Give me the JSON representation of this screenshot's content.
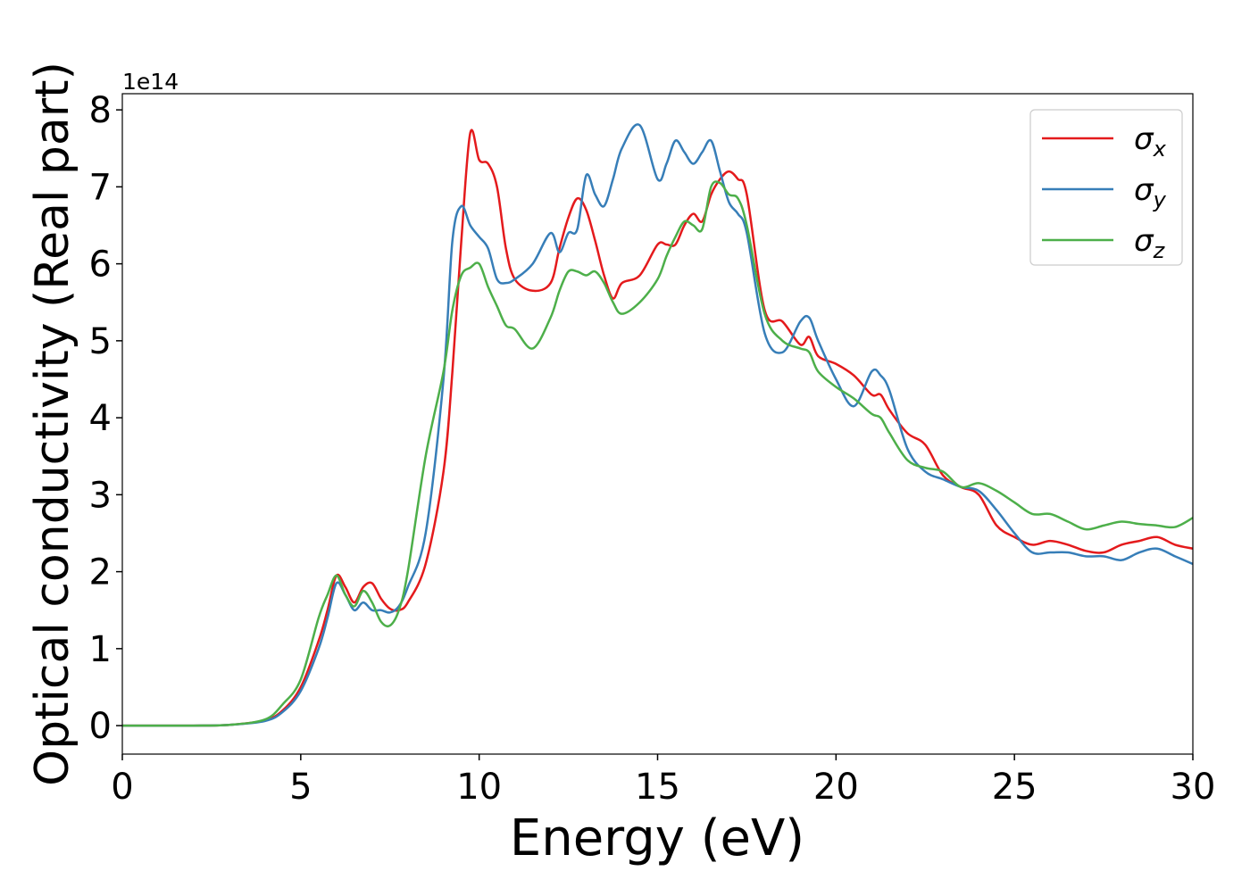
{
  "chart_data": {
    "type": "line",
    "xlabel": "Energy (eV)",
    "ylabel": "Optical conductivity (Real part)",
    "y_offset_label": "1e14",
    "x": [
      0,
      1,
      2,
      3,
      4,
      4.5,
      5,
      5.5,
      5.75,
      6,
      6.25,
      6.5,
      6.75,
      7,
      7.25,
      7.5,
      7.75,
      8,
      8.5,
      9,
      9.25,
      9.5,
      9.75,
      10,
      10.25,
      10.5,
      10.75,
      11,
      11.5,
      12,
      12.25,
      12.5,
      12.75,
      13,
      13.25,
      13.5,
      13.75,
      14,
      14.5,
      15,
      15.25,
      15.5,
      15.75,
      16,
      16.25,
      16.5,
      16.75,
      17,
      17.25,
      17.5,
      18,
      18.5,
      19,
      19.25,
      19.5,
      20,
      20.5,
      21,
      21.25,
      21.5,
      22,
      22.5,
      23,
      23.5,
      24,
      24.5,
      25,
      25.5,
      26,
      26.5,
      27,
      27.5,
      28,
      28.5,
      29,
      29.5,
      30
    ],
    "series": [
      {
        "name": "σx",
        "color": "#e41a1c",
        "values": [
          0,
          0,
          0,
          0.01,
          0.07,
          0.2,
          0.5,
          1.1,
          1.5,
          1.95,
          1.8,
          1.6,
          1.8,
          1.85,
          1.65,
          1.52,
          1.5,
          1.6,
          2.1,
          3.3,
          4.6,
          6.3,
          7.7,
          7.35,
          7.3,
          7.0,
          6.2,
          5.8,
          5.65,
          5.75,
          6.2,
          6.6,
          6.85,
          6.7,
          6.3,
          5.85,
          5.55,
          5.75,
          5.85,
          6.25,
          6.25,
          6.25,
          6.5,
          6.65,
          6.55,
          6.9,
          7.1,
          7.2,
          7.1,
          6.9,
          5.4,
          5.25,
          4.95,
          5.05,
          4.8,
          4.7,
          4.55,
          4.3,
          4.3,
          4.1,
          3.8,
          3.65,
          3.25,
          3.1,
          3.0,
          2.6,
          2.45,
          2.35,
          2.4,
          2.35,
          2.27,
          2.25,
          2.35,
          2.4,
          2.45,
          2.35,
          2.3
        ]
      },
      {
        "name": "σy",
        "color": "#377eb8",
        "values": [
          0,
          0,
          0,
          0.01,
          0.06,
          0.18,
          0.45,
          1.0,
          1.4,
          1.85,
          1.7,
          1.5,
          1.6,
          1.5,
          1.5,
          1.47,
          1.55,
          1.8,
          2.5,
          4.5,
          6.3,
          6.75,
          6.5,
          6.35,
          6.2,
          5.8,
          5.75,
          5.8,
          6.0,
          6.4,
          6.15,
          6.4,
          6.45,
          7.15,
          6.9,
          6.75,
          7.1,
          7.5,
          7.8,
          7.1,
          7.3,
          7.6,
          7.45,
          7.3,
          7.45,
          7.6,
          7.2,
          6.8,
          6.65,
          6.4,
          5.1,
          4.85,
          5.25,
          5.3,
          5.0,
          4.5,
          4.15,
          4.6,
          4.55,
          4.35,
          3.6,
          3.3,
          3.2,
          3.1,
          3.05,
          2.8,
          2.5,
          2.25,
          2.25,
          2.25,
          2.2,
          2.2,
          2.15,
          2.25,
          2.3,
          2.2,
          2.1
        ]
      },
      {
        "name": "σz",
        "color": "#4daf4a",
        "values": [
          0,
          0,
          0,
          0.01,
          0.08,
          0.28,
          0.6,
          1.4,
          1.7,
          1.95,
          1.7,
          1.55,
          1.75,
          1.6,
          1.35,
          1.3,
          1.5,
          2.0,
          3.5,
          4.6,
          5.4,
          5.85,
          5.95,
          6.0,
          5.7,
          5.45,
          5.2,
          5.15,
          4.9,
          5.3,
          5.65,
          5.9,
          5.9,
          5.85,
          5.9,
          5.75,
          5.5,
          5.35,
          5.5,
          5.8,
          6.1,
          6.35,
          6.55,
          6.5,
          6.45,
          7.0,
          7.05,
          6.9,
          6.85,
          6.5,
          5.35,
          5.0,
          4.9,
          4.85,
          4.6,
          4.4,
          4.25,
          4.05,
          4.0,
          3.8,
          3.45,
          3.35,
          3.3,
          3.1,
          3.15,
          3.05,
          2.9,
          2.75,
          2.75,
          2.65,
          2.55,
          2.6,
          2.65,
          2.62,
          2.6,
          2.58,
          2.7
        ]
      }
    ],
    "xlim": [
      0,
      30
    ],
    "ylim": [
      -0.37,
      8.21
    ],
    "xticks": [
      0,
      5,
      10,
      15,
      20,
      25,
      30
    ],
    "yticks": [
      0,
      1,
      2,
      3,
      4,
      5,
      6,
      7,
      8
    ],
    "legend": "upper right",
    "grid": false
  }
}
